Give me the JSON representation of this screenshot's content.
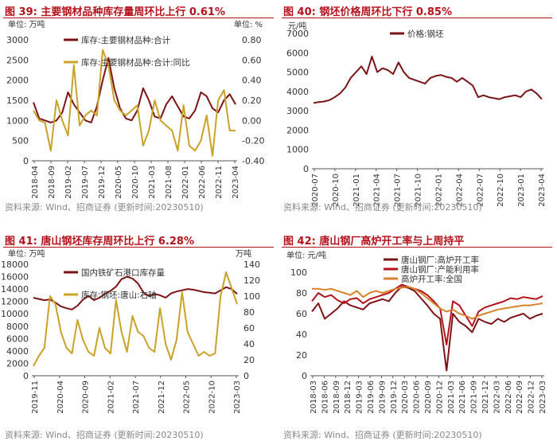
{
  "colors": {
    "accent": "#b5121b",
    "dark": "#7b1416",
    "gold": "#c9a227",
    "orange": "#d9822b",
    "axis": "#333333"
  },
  "chart_data": [
    {
      "id": "c39",
      "type": "line",
      "title": "图 39:  主要钢材品种库存量周环比上行 0.61%",
      "source": "资料来源: Wind、招商证券 (更新时间:20230510)",
      "left_unit": "单位: 万吨",
      "right_unit": "单位: %",
      "xlabels": [
        "2018-04",
        "2018-09",
        "2019-02",
        "2019-07",
        "2019-12",
        "2020-05",
        "2020-10",
        "2021-03",
        "2021-08",
        "2022-01",
        "2022-06",
        "2022-11",
        "2023-04"
      ],
      "ylim": [
        0,
        3000
      ],
      "yticks": [
        "0",
        "500",
        "1000",
        "1500",
        "2000",
        "2500",
        "3000"
      ],
      "y2lim": [
        -0.4,
        0.8
      ],
      "y2ticks": [
        "-0.40",
        "-0.20",
        "0.00",
        "0.20",
        "0.40",
        "0.60",
        "0.80"
      ],
      "legend": "top-center",
      "series": [
        {
          "name": "库存:主要钢材品种:合计",
          "axis": "left",
          "color": "#7b1416",
          "values": [
            1450,
            1050,
            1000,
            950,
            1000,
            1200,
            1700,
            1400,
            1200,
            1000,
            950,
            1350,
            2000,
            2550,
            1800,
            1300,
            1050,
            1000,
            1250,
            1800,
            1500,
            1100,
            1050,
            1400,
            1600,
            1350,
            1100,
            1050,
            1250,
            1700,
            1600,
            1300,
            1200,
            1500,
            1650,
            1400
          ]
        },
        {
          "name": "库存:主要钢材品种:合计:同比",
          "axis": "right",
          "color": "#c9a227",
          "values": [
            0.1,
            0.0,
            -0.02,
            -0.3,
            0.2,
            0.0,
            -0.15,
            0.55,
            -0.05,
            0.05,
            0.1,
            0.05,
            0.7,
            0.55,
            0.2,
            0.1,
            0.05,
            0.1,
            0.15,
            -0.25,
            -0.1,
            0.2,
            0.0,
            -0.05,
            -0.1,
            -0.3,
            0.15,
            -0.25,
            -0.3,
            -0.2,
            0.05,
            -0.35,
            0.2,
            0.3,
            -0.1,
            -0.1
          ]
        }
      ]
    },
    {
      "id": "c40",
      "type": "line",
      "title": "图 40:  钢坯价格周环比下行 0.85%",
      "source": "资料来源: Wind、招商证券 (更新时间:20230510)",
      "left_unit": "元/吨",
      "xlabels": [
        "2020-07",
        "2020-10",
        "2021-01",
        "2021-04",
        "2021-07",
        "2021-10",
        "2022-01",
        "2022-04",
        "2022-07",
        "2022-10",
        "2023-01",
        "2023-04"
      ],
      "ylim": [
        0,
        7000
      ],
      "yticks": [
        "0",
        "1000",
        "2000",
        "3000",
        "4000",
        "5000",
        "6000",
        "7000"
      ],
      "legend": "top-center",
      "series": [
        {
          "name": "价格:钢坯",
          "axis": "left",
          "color": "#7b1416",
          "values": [
            3400,
            3450,
            3480,
            3550,
            3700,
            3900,
            4200,
            4700,
            5000,
            5300,
            4900,
            5800,
            5000,
            5200,
            5100,
            4900,
            5500,
            5000,
            4700,
            4600,
            4500,
            4400,
            4700,
            4800,
            4850,
            4750,
            4700,
            4500,
            4700,
            4500,
            4300,
            3700,
            3800,
            3700,
            3650,
            3600,
            3700,
            3750,
            3800,
            3700,
            4000,
            4100,
            3900,
            3600
          ]
        }
      ]
    },
    {
      "id": "c41",
      "type": "line",
      "title": "图 41:  唐山钢坯库存周环比上行 6.28%",
      "source": "资料来源: Wind、招商证券 (更新时间:20230510)",
      "left_unit": "单位: 万吨",
      "right_unit": "万吨",
      "xlabels": [
        "2019-11",
        "2020-04",
        "2020-09",
        "2021-02",
        "2021-07",
        "2021-12",
        "2022-05",
        "2022-10",
        "2023-03"
      ],
      "ylim": [
        0,
        18000
      ],
      "yticks": [
        "0",
        "2000",
        "4000",
        "6000",
        "8000",
        "10000",
        "12000",
        "14000",
        "16000",
        "18000"
      ],
      "y2lim": [
        0,
        140
      ],
      "y2ticks": [
        "0",
        "20",
        "40",
        "60",
        "80",
        "100",
        "120",
        "140"
      ],
      "legend": "top-center",
      "series": [
        {
          "name": "国内铁矿石港口库存量",
          "axis": "left",
          "color": "#7b1416",
          "values": [
            12600,
            12400,
            12200,
            12300,
            11800,
            11200,
            10900,
            10700,
            11300,
            12300,
            12900,
            12200,
            12600,
            13200,
            13700,
            14400,
            15600,
            16000,
            15700,
            14900,
            13400,
            12900,
            13200,
            13000,
            12600,
            13300,
            13600,
            13800,
            14000,
            13900,
            13700,
            13500,
            13400,
            13300,
            13800,
            14300,
            14000,
            13200
          ]
        },
        {
          "name": "库存:钢坯:唐山:右轴",
          "axis": "right",
          "color": "#c9a227",
          "values": [
            12,
            25,
            35,
            100,
            90,
            55,
            35,
            28,
            70,
            45,
            30,
            25,
            60,
            35,
            28,
            95,
            55,
            30,
            75,
            55,
            50,
            35,
            30,
            85,
            40,
            20,
            45,
            105,
            55,
            40,
            25,
            30,
            25,
            28,
            100,
            130,
            110,
            90
          ]
        }
      ]
    },
    {
      "id": "c42",
      "type": "line",
      "title": "图 42:  唐山钢厂高炉开工率与上周持平",
      "source": "资料来源: Wind、招商证券 (更新时间:20230510)",
      "left_unit": "单位: 元/吨",
      "xlabels": [
        "2018-03",
        "2018-06",
        "2018-09",
        "2018-12",
        "2019-03",
        "2019-06",
        "2019-09",
        "2019-12",
        "2020-03",
        "2020-06",
        "2020-09",
        "2020-12",
        "2021-03",
        "2021-06",
        "2021-09",
        "2021-12",
        "2022-03",
        "2022-06",
        "2022-09",
        "2022-12",
        "2023-03"
      ],
      "ylim": [
        0,
        100
      ],
      "yticks": [
        "0",
        "20",
        "40",
        "60",
        "80",
        "100"
      ],
      "legend": "top-left",
      "series": [
        {
          "name": "唐山钢厂:高炉开工率",
          "axis": "left",
          "color": "#7b1416",
          "values": [
            62,
            70,
            55,
            60,
            65,
            72,
            68,
            66,
            64,
            70,
            72,
            74,
            72,
            80,
            86,
            85,
            82,
            75,
            68,
            60,
            55,
            5,
            60,
            52,
            48,
            42,
            55,
            52,
            50,
            55,
            52,
            56,
            58,
            60,
            55,
            58,
            60
          ]
        },
        {
          "name": "唐山钢厂:产能利用率",
          "axis": "left",
          "color": "#b5121b",
          "values": [
            72,
            80,
            76,
            78,
            73,
            70,
            74,
            75,
            70,
            74,
            76,
            78,
            80,
            84,
            88,
            86,
            84,
            82,
            78,
            72,
            65,
            30,
            72,
            68,
            58,
            48,
            62,
            66,
            68,
            70,
            72,
            75,
            74,
            76,
            75,
            74,
            77
          ]
        },
        {
          "name": "高炉开工率:全国",
          "axis": "left",
          "color": "#d9822b",
          "values": [
            84,
            84,
            83,
            84,
            82,
            80,
            78,
            82,
            76,
            80,
            82,
            80,
            82,
            84,
            85,
            86,
            84,
            80,
            75,
            70,
            65,
            62,
            64,
            60,
            58,
            55,
            58,
            60,
            62,
            64,
            65,
            66,
            67,
            68,
            68,
            69,
            70
          ]
        }
      ]
    }
  ]
}
